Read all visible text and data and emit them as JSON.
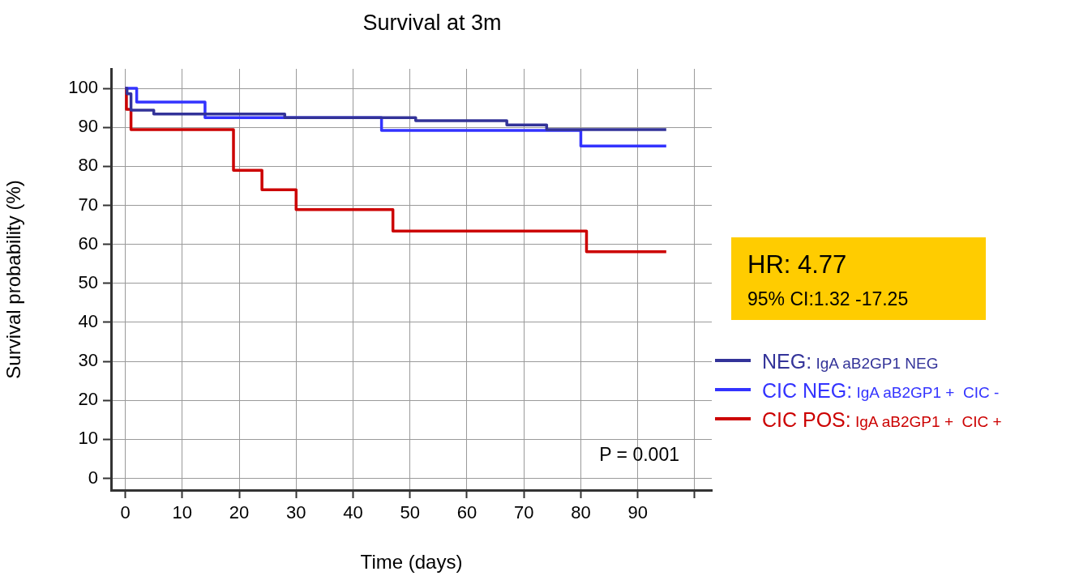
{
  "chart_data": {
    "type": "step",
    "title": "Survival at 3m",
    "xlabel": "Time (days)",
    "ylabel": "Survival probability (%)",
    "xlim": [
      -2.5,
      103
    ],
    "ylim": [
      -3,
      105
    ],
    "xticks": [
      0,
      10,
      20,
      30,
      40,
      50,
      60,
      70,
      80,
      90,
      {
        "value": 100,
        "label": null
      }
    ],
    "yticks": [
      0,
      10,
      20,
      30,
      40,
      50,
      60,
      70,
      80,
      90,
      100
    ],
    "grid": true,
    "legend": "right",
    "line_style": "solid",
    "marker": "none",
    "annotations": [
      "HR: 4.77",
      "95% CI:1.32 -17.25",
      "P = 0.001"
    ],
    "series": [
      {
        "name": "NEG: IgA aB2GP1 NEG",
        "color": "#333399",
        "x": [
          0,
          0.3,
          1,
          5,
          28,
          51,
          67,
          74,
          95
        ],
        "values": [
          100,
          98.6,
          94.4,
          93.4,
          92.5,
          91.7,
          90.6,
          89.4,
          89.4
        ]
      },
      {
        "name": "CIC NEG: IgA aB2GP1 +  CIC -",
        "color": "#3333ff",
        "x": [
          0,
          2,
          14,
          45,
          80,
          95
        ],
        "values": [
          100,
          96.5,
          92.5,
          89.2,
          85.2,
          85.2
        ]
      },
      {
        "name": "CIC POS: IgA aB2GP1 +  CIC +",
        "color": "#cc0000",
        "x": [
          0,
          0.2,
          1,
          19,
          24,
          30,
          47,
          81,
          95
        ],
        "values": [
          100,
          94.6,
          89.4,
          79,
          74,
          68.9,
          63.4,
          58.1,
          58.1
        ]
      }
    ]
  }
}
